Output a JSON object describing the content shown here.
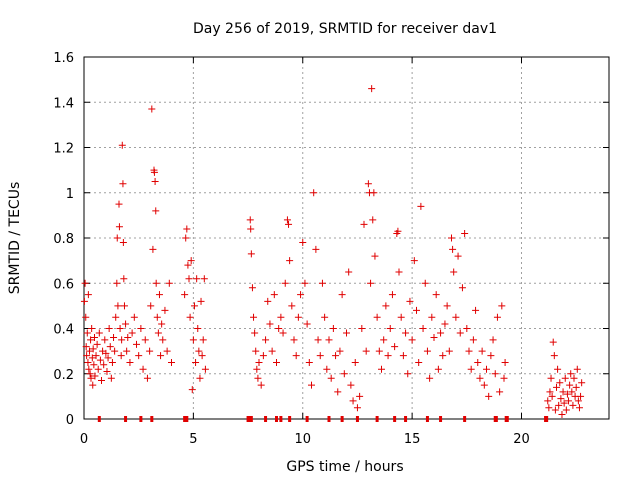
{
  "chart_data": {
    "type": "scatter",
    "title": "Day 256 of 2019, SRMTID for receiver dav1",
    "xlabel": "GPS time / hours",
    "ylabel": "SRMTID / TECUs",
    "xlim": [
      0,
      24
    ],
    "ylim": [
      0,
      1.6
    ],
    "x_ticks": [
      0,
      5,
      10,
      15,
      20
    ],
    "y_ticks": [
      0,
      0.2,
      0.4,
      0.6,
      0.8,
      1,
      1.2,
      1.4,
      1.6
    ],
    "x_tick_labels": [
      "0",
      "5",
      "10",
      "15",
      "20"
    ],
    "y_tick_labels": [
      "0",
      "0.2",
      "0.4",
      "0.6",
      "0.8",
      "1",
      "1.2",
      "1.4",
      "1.6"
    ],
    "grid": true,
    "marker": "+",
    "color": "#e00000",
    "series": [
      {
        "name": "SRMTID",
        "points": [
          [
            0.02,
            0.52
          ],
          [
            0.05,
            0.6
          ],
          [
            0.08,
            0.45
          ],
          [
            0.1,
            0.32
          ],
          [
            0.12,
            0.28
          ],
          [
            0.15,
            0.38
          ],
          [
            0.18,
            0.25
          ],
          [
            0.2,
            0.55
          ],
          [
            0.22,
            0.22
          ],
          [
            0.25,
            0.3
          ],
          [
            0.28,
            0.2
          ],
          [
            0.3,
            0.35
          ],
          [
            0.32,
            0.18
          ],
          [
            0.35,
            0.4
          ],
          [
            0.38,
            0.27
          ],
          [
            0.4,
            0.15
          ],
          [
            0.42,
            0.31
          ],
          [
            0.45,
            0.24
          ],
          [
            0.48,
            0.36
          ],
          [
            0.5,
            0.19
          ],
          [
            0.55,
            0.28
          ],
          [
            0.6,
            0.33
          ],
          [
            0.65,
            0.22
          ],
          [
            0.7,
            0.38
          ],
          [
            0.75,
            0.26
          ],
          [
            0.8,
            0.17
          ],
          [
            0.85,
            0.3
          ],
          [
            0.9,
            0.24
          ],
          [
            0.95,
            0.35
          ],
          [
            1.0,
            0.29
          ],
          [
            1.05,
            0.21
          ],
          [
            1.1,
            0.27
          ],
          [
            1.15,
            0.4
          ],
          [
            1.2,
            0.32
          ],
          [
            1.25,
            0.18
          ],
          [
            1.3,
            0.25
          ],
          [
            1.35,
            0.36
          ],
          [
            1.4,
            0.3
          ],
          [
            1.45,
            0.45
          ],
          [
            1.5,
            0.6
          ],
          [
            1.52,
            0.8
          ],
          [
            1.55,
            0.5
          ],
          [
            1.6,
            0.95
          ],
          [
            1.62,
            0.85
          ],
          [
            1.65,
            0.4
          ],
          [
            1.7,
            0.28
          ],
          [
            1.72,
            0.35
          ],
          [
            1.75,
            1.21
          ],
          [
            1.78,
            1.04
          ],
          [
            1.8,
            0.78
          ],
          [
            1.82,
            0.62
          ],
          [
            1.85,
            0.5
          ],
          [
            1.9,
            0.42
          ],
          [
            1.95,
            0.3
          ],
          [
            2.0,
            0.36
          ],
          [
            2.1,
            0.25
          ],
          [
            2.2,
            0.38
          ],
          [
            2.3,
            0.45
          ],
          [
            2.4,
            0.33
          ],
          [
            2.5,
            0.28
          ],
          [
            2.6,
            0.4
          ],
          [
            2.7,
            0.22
          ],
          [
            2.8,
            0.35
          ],
          [
            2.9,
            0.18
          ],
          [
            3.0,
            0.3
          ],
          [
            3.05,
            0.5
          ],
          [
            3.1,
            1.37
          ],
          [
            3.15,
            0.75
          ],
          [
            3.2,
            1.1
          ],
          [
            3.22,
            1.09
          ],
          [
            3.25,
            1.05
          ],
          [
            3.28,
            0.92
          ],
          [
            3.3,
            0.6
          ],
          [
            3.35,
            0.45
          ],
          [
            3.4,
            0.38
          ],
          [
            3.45,
            0.55
          ],
          [
            3.5,
            0.28
          ],
          [
            3.55,
            0.42
          ],
          [
            3.6,
            0.35
          ],
          [
            3.7,
            0.48
          ],
          [
            3.8,
            0.3
          ],
          [
            3.9,
            0.6
          ],
          [
            4.0,
            0.25
          ],
          [
            4.6,
            0.55
          ],
          [
            4.65,
            0.8
          ],
          [
            4.7,
            0.84
          ],
          [
            4.75,
            0.68
          ],
          [
            4.8,
            0.62
          ],
          [
            4.85,
            0.45
          ],
          [
            4.9,
            0.7
          ],
          [
            4.95,
            0.13
          ],
          [
            5.0,
            0.35
          ],
          [
            5.05,
            0.5
          ],
          [
            5.1,
            0.25
          ],
          [
            5.15,
            0.62
          ],
          [
            5.2,
            0.4
          ],
          [
            5.25,
            0.3
          ],
          [
            5.3,
            0.18
          ],
          [
            5.35,
            0.52
          ],
          [
            5.4,
            0.28
          ],
          [
            5.45,
            0.35
          ],
          [
            5.5,
            0.62
          ],
          [
            5.55,
            0.22
          ],
          [
            7.6,
            0.88
          ],
          [
            7.62,
            0.84
          ],
          [
            7.65,
            0.73
          ],
          [
            7.7,
            0.58
          ],
          [
            7.75,
            0.45
          ],
          [
            7.8,
            0.38
          ],
          [
            7.85,
            0.3
          ],
          [
            7.9,
            0.22
          ],
          [
            7.95,
            0.18
          ],
          [
            8.0,
            0.25
          ],
          [
            8.1,
            0.15
          ],
          [
            8.2,
            0.28
          ],
          [
            8.3,
            0.35
          ],
          [
            8.4,
            0.52
          ],
          [
            8.5,
            0.42
          ],
          [
            8.6,
            0.3
          ],
          [
            8.7,
            0.55
          ],
          [
            8.8,
            0.25
          ],
          [
            8.9,
            0.4
          ],
          [
            9.0,
            0.45
          ],
          [
            9.1,
            0.38
          ],
          [
            9.2,
            0.6
          ],
          [
            9.3,
            0.88
          ],
          [
            9.35,
            0.86
          ],
          [
            9.4,
            0.7
          ],
          [
            9.5,
            0.5
          ],
          [
            9.6,
            0.35
          ],
          [
            9.7,
            0.28
          ],
          [
            9.8,
            0.45
          ],
          [
            9.9,
            0.55
          ],
          [
            10.0,
            0.78
          ],
          [
            10.1,
            0.6
          ],
          [
            10.2,
            0.42
          ],
          [
            10.3,
            0.25
          ],
          [
            10.4,
            0.15
          ],
          [
            10.5,
            1.0
          ],
          [
            10.6,
            0.75
          ],
          [
            10.7,
            0.35
          ],
          [
            10.8,
            0.28
          ],
          [
            10.9,
            0.6
          ],
          [
            11.0,
            0.45
          ],
          [
            11.1,
            0.22
          ],
          [
            11.2,
            0.35
          ],
          [
            11.3,
            0.18
          ],
          [
            11.4,
            0.4
          ],
          [
            11.5,
            0.28
          ],
          [
            11.6,
            0.12
          ],
          [
            11.7,
            0.3
          ],
          [
            11.8,
            0.55
          ],
          [
            11.9,
            0.2
          ],
          [
            12.0,
            0.38
          ],
          [
            12.1,
            0.65
          ],
          [
            12.2,
            0.15
          ],
          [
            12.3,
            0.08
          ],
          [
            12.4,
            0.25
          ],
          [
            12.5,
            0.05
          ],
          [
            12.6,
            0.1
          ],
          [
            12.7,
            0.4
          ],
          [
            12.8,
            0.86
          ],
          [
            12.9,
            0.3
          ],
          [
            13.0,
            1.04
          ],
          [
            13.05,
            1.0
          ],
          [
            13.1,
            0.6
          ],
          [
            13.15,
            1.46
          ],
          [
            13.2,
            0.88
          ],
          [
            13.25,
            1.0
          ],
          [
            13.3,
            0.72
          ],
          [
            13.4,
            0.45
          ],
          [
            13.5,
            0.3
          ],
          [
            13.6,
            0.22
          ],
          [
            13.7,
            0.35
          ],
          [
            13.8,
            0.5
          ],
          [
            13.9,
            0.28
          ],
          [
            14.0,
            0.4
          ],
          [
            14.1,
            0.55
          ],
          [
            14.2,
            0.32
          ],
          [
            14.3,
            0.82
          ],
          [
            14.35,
            0.83
          ],
          [
            14.4,
            0.65
          ],
          [
            14.5,
            0.45
          ],
          [
            14.6,
            0.28
          ],
          [
            14.7,
            0.38
          ],
          [
            14.8,
            0.2
          ],
          [
            14.9,
            0.52
          ],
          [
            15.0,
            0.35
          ],
          [
            15.1,
            0.7
          ],
          [
            15.2,
            0.48
          ],
          [
            15.3,
            0.25
          ],
          [
            15.4,
            0.94
          ],
          [
            15.5,
            0.4
          ],
          [
            15.6,
            0.6
          ],
          [
            15.7,
            0.3
          ],
          [
            15.8,
            0.18
          ],
          [
            15.9,
            0.45
          ],
          [
            16.0,
            0.36
          ],
          [
            16.1,
            0.55
          ],
          [
            16.2,
            0.22
          ],
          [
            16.3,
            0.38
          ],
          [
            16.4,
            0.28
          ],
          [
            16.5,
            0.42
          ],
          [
            16.6,
            0.5
          ],
          [
            16.7,
            0.3
          ],
          [
            16.8,
            0.8
          ],
          [
            16.85,
            0.75
          ],
          [
            16.9,
            0.65
          ],
          [
            17.0,
            0.45
          ],
          [
            17.1,
            0.72
          ],
          [
            17.2,
            0.38
          ],
          [
            17.3,
            0.58
          ],
          [
            17.4,
            0.82
          ],
          [
            17.5,
            0.4
          ],
          [
            17.6,
            0.3
          ],
          [
            17.7,
            0.22
          ],
          [
            17.8,
            0.35
          ],
          [
            17.9,
            0.48
          ],
          [
            18.0,
            0.25
          ],
          [
            18.1,
            0.18
          ],
          [
            18.2,
            0.3
          ],
          [
            18.3,
            0.15
          ],
          [
            18.4,
            0.22
          ],
          [
            18.5,
            0.1
          ],
          [
            18.6,
            0.28
          ],
          [
            18.7,
            0.35
          ],
          [
            18.8,
            0.2
          ],
          [
            18.9,
            0.45
          ],
          [
            19.0,
            0.12
          ],
          [
            19.1,
            0.5
          ],
          [
            19.2,
            0.18
          ],
          [
            19.25,
            0.25
          ],
          [
            21.2,
            0.08
          ],
          [
            21.25,
            0.05
          ],
          [
            21.3,
            0.12
          ],
          [
            21.35,
            0.18
          ],
          [
            21.4,
            0.1
          ],
          [
            21.45,
            0.34
          ],
          [
            21.5,
            0.28
          ],
          [
            21.55,
            0.04
          ],
          [
            21.6,
            0.14
          ],
          [
            21.65,
            0.22
          ],
          [
            21.7,
            0.06
          ],
          [
            21.75,
            0.16
          ],
          [
            21.8,
            0.09
          ],
          [
            21.85,
            0.02
          ],
          [
            21.9,
            0.12
          ],
          [
            21.95,
            0.07
          ],
          [
            22.0,
            0.18
          ],
          [
            22.05,
            0.04
          ],
          [
            22.1,
            0.11
          ],
          [
            22.15,
            0.08
          ],
          [
            22.2,
            0.15
          ],
          [
            22.25,
            0.2
          ],
          [
            22.3,
            0.12
          ],
          [
            22.35,
            0.06
          ],
          [
            22.4,
            0.18
          ],
          [
            22.45,
            0.1
          ],
          [
            22.5,
            0.14
          ],
          [
            22.55,
            0.22
          ],
          [
            22.6,
            0.08
          ],
          [
            22.65,
            0.05
          ],
          [
            22.7,
            0.1
          ],
          [
            22.75,
            0.16
          ]
        ]
      }
    ],
    "baseline_markers_x": [
      0.7,
      1.9,
      2.6,
      3.1,
      4.6,
      4.65,
      4.7,
      7.5,
      7.6,
      7.65,
      8.3,
      8.8,
      9.0,
      9.4,
      10.2,
      11.2,
      11.8,
      12.5,
      13.4,
      14.2,
      14.7,
      15.7,
      16.3,
      17.4,
      18.8,
      18.85,
      19.3,
      19.35,
      21.1,
      21.15
    ]
  }
}
